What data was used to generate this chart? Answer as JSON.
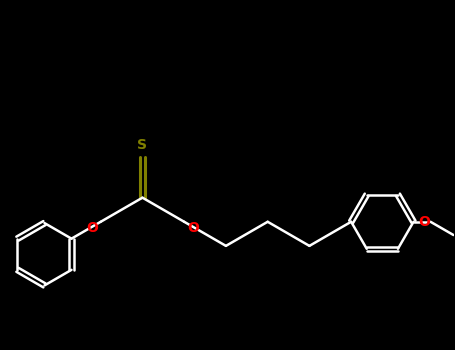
{
  "bg_color": "#000000",
  "bond_color": "#ffffff",
  "S_color": "#808000",
  "O_color": "#ff0000",
  "lw": 1.8,
  "figsize": [
    4.55,
    3.5
  ],
  "dpi": 100,
  "xlim": [
    -2.5,
    5.5
  ],
  "ylim": [
    -2.0,
    2.8
  ]
}
